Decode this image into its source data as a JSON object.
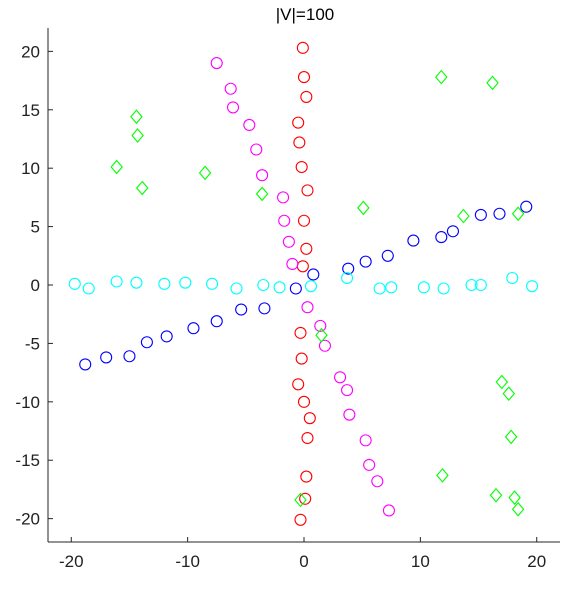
{
  "chart_data": {
    "type": "scatter",
    "title": "|V|=100",
    "xlim": [
      -22,
      22
    ],
    "ylim": [
      -22,
      22
    ],
    "x_ticks": [
      -20,
      -10,
      0,
      10,
      20
    ],
    "y_ticks": [
      -20,
      -15,
      -10,
      -5,
      0,
      5,
      10,
      15,
      20
    ],
    "x_tick_labels": [
      "-20",
      "-10",
      "0",
      "10",
      "20"
    ],
    "y_tick_labels": [
      "-20",
      "-15",
      "-10",
      "-5",
      "0",
      "5",
      "10",
      "15",
      "20"
    ],
    "grid": false,
    "series": [
      {
        "marker": "circle",
        "color": "#0000ff",
        "x": [
          -18.8,
          -17,
          -15,
          -13.5,
          -11.8,
          -9.5,
          -7.5,
          -5.4,
          -3.4,
          -0.7,
          0.8,
          3.8,
          5.3,
          7.2,
          9.4,
          11.8,
          12.8,
          15.2,
          16.8,
          19.1
        ],
        "y": [
          -6.8,
          -6.2,
          -6.1,
          -4.9,
          -4.4,
          -3.7,
          -3.1,
          -2.1,
          -2.0,
          -0.3,
          0.9,
          1.4,
          2.0,
          2.5,
          3.8,
          4.1,
          4.6,
          6.0,
          6.1,
          6.7
        ]
      },
      {
        "marker": "circle",
        "color": "#00ffff",
        "x": [
          -19.7,
          -18.5,
          -16.1,
          -14.4,
          -12,
          -10.2,
          -7.9,
          -5.8,
          -3.5,
          -2.1,
          0.6,
          3.7,
          6.5,
          7.5,
          10.3,
          12,
          14.4,
          15.2,
          17.9,
          19.6
        ],
        "y": [
          0.1,
          -0.3,
          0.3,
          0.2,
          0.1,
          0.2,
          0.1,
          -0.3,
          0.0,
          -0.2,
          -0.1,
          0.6,
          -0.3,
          -0.2,
          -0.2,
          -0.3,
          0.0,
          0.0,
          0.6,
          -0.1
        ]
      },
      {
        "marker": "circle",
        "color": "#ff0000",
        "x": [
          -0.1,
          0.0,
          0.2,
          -0.5,
          -0.4,
          -0.2,
          0.3,
          0.0,
          0.2,
          -0.1,
          -0.3,
          -0.2,
          -0.5,
          0.0,
          0.5,
          0.3,
          0.2,
          0.1,
          -0.3
        ],
        "y": [
          20.3,
          17.8,
          16.1,
          13.9,
          12.2,
          10.1,
          8.1,
          5.5,
          3.1,
          1.6,
          -4.1,
          -6.3,
          -8.5,
          -10.0,
          -11.4,
          -13.1,
          -16.4,
          -18.3,
          -20.1
        ]
      },
      {
        "marker": "circle",
        "color": "#ff00ff",
        "x": [
          -7.5,
          -6.3,
          -6.1,
          -4.7,
          -4.1,
          -3.6,
          -1.8,
          -1.7,
          -1.3,
          -1.0,
          0.3,
          1.4,
          1.8,
          3.1,
          3.7,
          3.9,
          5.3,
          5.6,
          6.3,
          7.3
        ],
        "y": [
          19.0,
          16.8,
          15.2,
          13.7,
          11.6,
          9.4,
          7.5,
          5.5,
          3.7,
          1.8,
          -1.9,
          -3.5,
          -5.2,
          -7.9,
          -9.0,
          -11.1,
          -13.3,
          -15.4,
          -16.8,
          -19.3
        ]
      },
      {
        "marker": "diamond",
        "color": "#00ff00",
        "x": [
          -14.4,
          -14.3,
          -16.1,
          -13.9,
          -8.5,
          -3.6,
          5.1,
          11.8,
          13.7,
          16.2,
          18.4,
          1.5,
          17.0,
          17.6,
          17.8,
          11.9,
          16.5,
          18.1,
          18.4,
          -0.3
        ],
        "y": [
          14.4,
          12.8,
          10.1,
          8.3,
          9.6,
          7.8,
          6.6,
          17.8,
          5.9,
          17.3,
          6.1,
          -4.3,
          -8.3,
          -9.3,
          -13.0,
          -16.3,
          -18.0,
          -18.2,
          -19.2,
          -18.4
        ]
      }
    ]
  }
}
